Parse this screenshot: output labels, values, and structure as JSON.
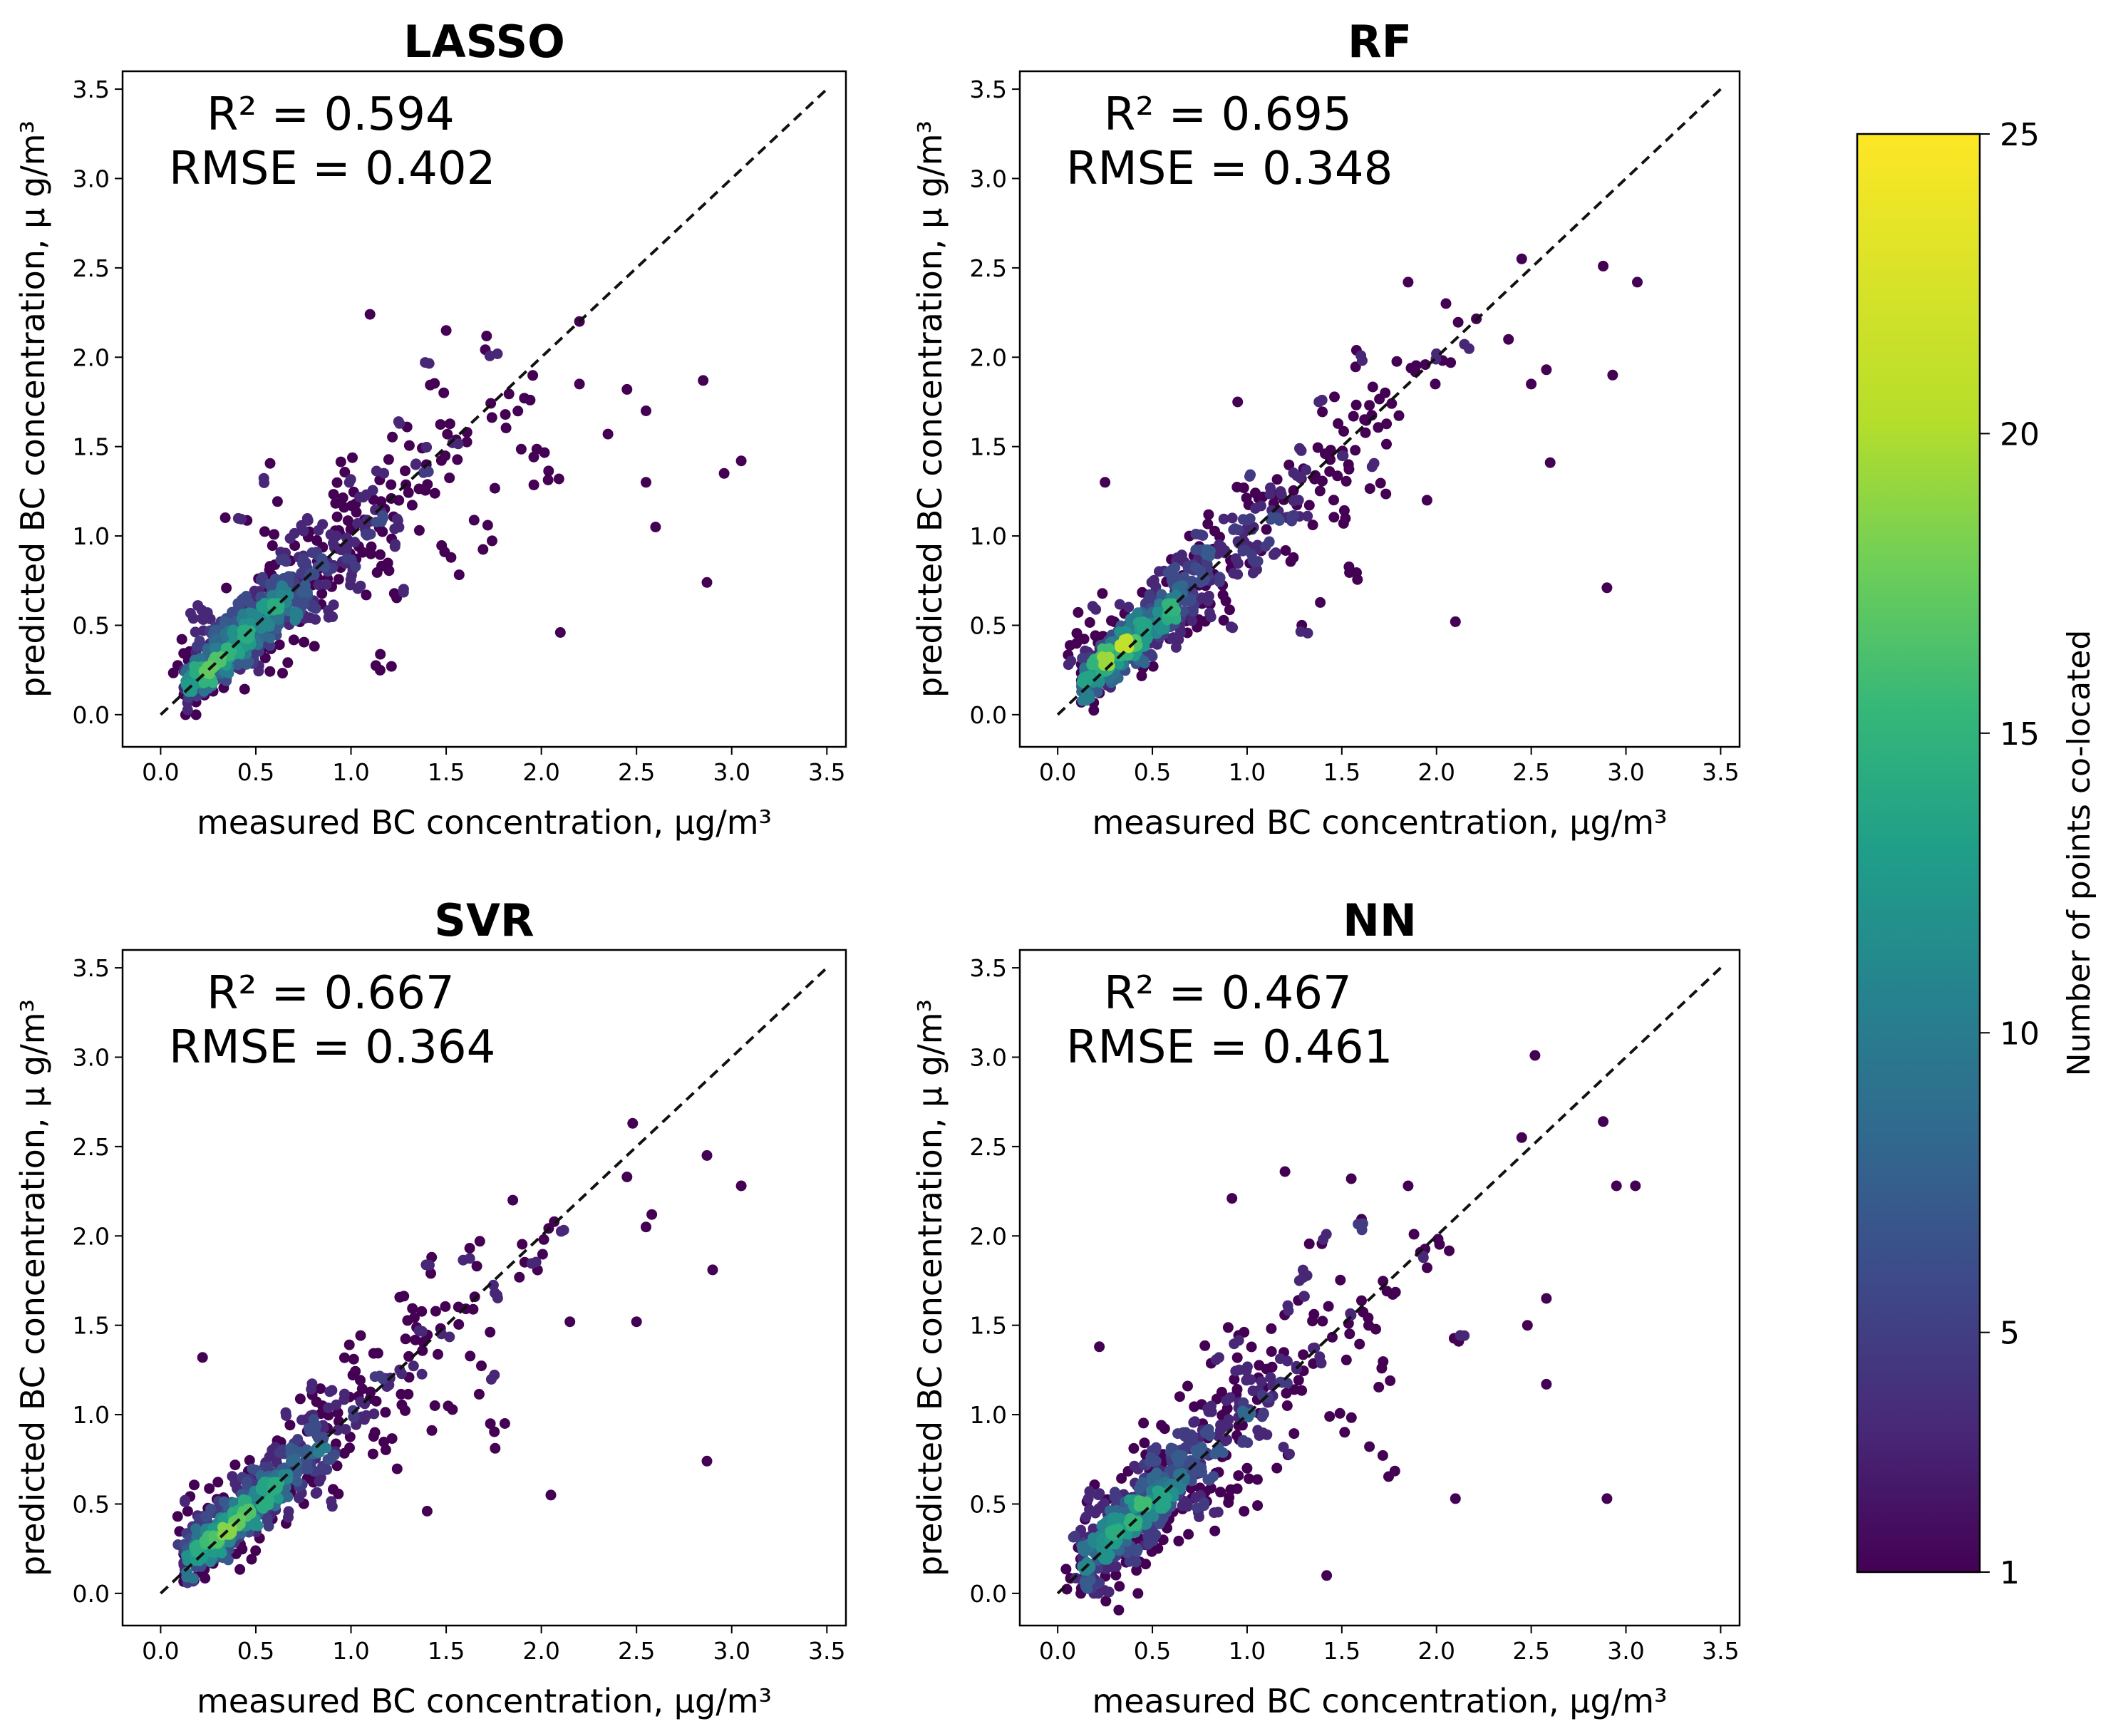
{
  "chart_data": [
    {
      "type": "scatter",
      "title": "LASSO",
      "xlabel": "measured BC concentration, μg/m³",
      "ylabel": "predicted BC concentration, μ g/m³",
      "xlim": [
        -0.2,
        3.6
      ],
      "ylim": [
        -0.18,
        3.6
      ],
      "xticks": [
        "0.0",
        "0.5",
        "1.0",
        "1.5",
        "2.0",
        "2.5",
        "3.0",
        "3.5"
      ],
      "yticks": [
        "0.0",
        "0.5",
        "1.0",
        "1.5",
        "2.0",
        "2.5",
        "3.0",
        "3.5"
      ],
      "annotation": {
        "r2": "R² = 0.594",
        "rmse": "RMSE = 0.402"
      },
      "stats": {
        "r2": 0.594,
        "rmse": 0.402
      },
      "reference_line": "y = x (dashed)",
      "outliers": [
        [
          2.1,
          0.46
        ],
        [
          2.87,
          0.74
        ],
        [
          3.05,
          1.42
        ],
        [
          2.96,
          1.35
        ],
        [
          2.6,
          1.05
        ],
        [
          2.55,
          1.3
        ],
        [
          2.85,
          1.87
        ],
        [
          2.55,
          1.7
        ],
        [
          2.35,
          1.57
        ],
        [
          2.45,
          1.82
        ],
        [
          2.2,
          1.85
        ],
        [
          1.1,
          2.24
        ],
        [
          1.5,
          2.15
        ],
        [
          2.2,
          2.2
        ]
      ],
      "points": [
        [
          0.42,
          0.4
        ],
        [
          0.38,
          0.36
        ],
        [
          0.5,
          0.45
        ],
        [
          0.3,
          0.34
        ],
        [
          0.6,
          0.55
        ],
        [
          0.7,
          0.62
        ],
        [
          0.8,
          0.75
        ],
        [
          0.95,
          0.9
        ],
        [
          1.1,
          1.05
        ],
        [
          1.2,
          1.15
        ],
        [
          1.3,
          1.25
        ],
        [
          1.4,
          1.3
        ],
        [
          1.5,
          1.4
        ],
        [
          1.6,
          1.55
        ],
        [
          1.8,
          1.7
        ],
        [
          1.9,
          1.8
        ],
        [
          0.9,
          1.2
        ],
        [
          1.0,
          1.4
        ],
        [
          1.3,
          1.6
        ],
        [
          1.4,
          1.9
        ],
        [
          1.7,
          2.0
        ],
        [
          1.25,
          0.7
        ],
        [
          1.5,
          0.9
        ],
        [
          1.7,
          1.0
        ],
        [
          0.6,
          0.9
        ],
        [
          0.7,
          1.1
        ],
        [
          0.85,
          0.6
        ],
        [
          1.0,
          0.7
        ],
        [
          1.15,
          0.3
        ],
        [
          0.4,
          1.1
        ],
        [
          0.55,
          1.3
        ],
        [
          1.95,
          1.5
        ],
        [
          2.05,
          1.3
        ],
        [
          0.2,
          0.6
        ],
        [
          0.1,
          0.3
        ],
        [
          0.15,
          0.5
        ],
        [
          0.25,
          0.25
        ],
        [
          0.45,
          0.28
        ],
        [
          0.6,
          0.3
        ]
      ]
    },
    {
      "type": "scatter",
      "title": "RF",
      "xlabel": "measured BC concentration, μg/m³",
      "ylabel": "predicted BC concentration, μ g/m³",
      "xlim": [
        -0.2,
        3.6
      ],
      "ylim": [
        -0.18,
        3.6
      ],
      "xticks": [
        "0.0",
        "0.5",
        "1.0",
        "1.5",
        "2.0",
        "2.5",
        "3.0",
        "3.5"
      ],
      "yticks": [
        "0.0",
        "0.5",
        "1.0",
        "1.5",
        "2.0",
        "2.5",
        "3.0",
        "3.5"
      ],
      "annotation": {
        "r2": "R² = 0.695",
        "rmse": "RMSE = 0.348"
      },
      "stats": {
        "r2": 0.695,
        "rmse": 0.348
      },
      "reference_line": "y = x (dashed)",
      "outliers": [
        [
          2.9,
          0.71
        ],
        [
          2.1,
          0.52
        ],
        [
          2.93,
          1.9
        ],
        [
          3.06,
          2.42
        ],
        [
          2.88,
          2.51
        ],
        [
          2.6,
          1.41
        ],
        [
          2.58,
          1.93
        ],
        [
          2.5,
          1.85
        ],
        [
          2.45,
          2.55
        ],
        [
          2.38,
          2.1
        ],
        [
          1.85,
          2.42
        ],
        [
          2.05,
          2.3
        ],
        [
          0.25,
          1.3
        ],
        [
          0.95,
          1.75
        ],
        [
          1.95,
          1.2
        ]
      ],
      "points": [
        [
          0.4,
          0.4
        ],
        [
          0.35,
          0.37
        ],
        [
          0.5,
          0.45
        ],
        [
          0.3,
          0.33
        ],
        [
          0.6,
          0.55
        ],
        [
          0.7,
          0.65
        ],
        [
          0.85,
          0.8
        ],
        [
          1.0,
          0.95
        ],
        [
          1.1,
          1.1
        ],
        [
          1.2,
          1.2
        ],
        [
          1.35,
          1.3
        ],
        [
          1.5,
          1.45
        ],
        [
          1.6,
          1.6
        ],
        [
          1.75,
          1.7
        ],
        [
          1.9,
          1.9
        ],
        [
          2.0,
          2.0
        ],
        [
          2.15,
          2.15
        ],
        [
          0.8,
          1.0
        ],
        [
          1.0,
          1.3
        ],
        [
          1.3,
          1.5
        ],
        [
          1.5,
          1.1
        ],
        [
          1.7,
          1.3
        ],
        [
          0.9,
          0.6
        ],
        [
          1.2,
          0.9
        ],
        [
          0.6,
          0.8
        ],
        [
          1.4,
          1.8
        ],
        [
          1.6,
          2.0
        ],
        [
          0.2,
          0.6
        ],
        [
          0.1,
          0.3
        ],
        [
          0.15,
          0.45
        ],
        [
          0.25,
          0.25
        ],
        [
          0.45,
          0.28
        ],
        [
          1.35,
          0.5
        ],
        [
          1.55,
          0.8
        ]
      ]
    },
    {
      "type": "scatter",
      "title": "SVR",
      "xlabel": "measured BC concentration, μg/m³",
      "ylabel": "predicted BC concentration, μ g/m³",
      "xlim": [
        -0.2,
        3.6
      ],
      "ylim": [
        -0.18,
        3.6
      ],
      "xticks": [
        "0.0",
        "0.5",
        "1.0",
        "1.5",
        "2.0",
        "2.5",
        "3.0",
        "3.5"
      ],
      "yticks": [
        "0.0",
        "0.5",
        "1.0",
        "1.5",
        "2.0",
        "2.5",
        "3.0",
        "3.5"
      ],
      "annotation": {
        "r2": "R² = 0.667",
        "rmse": "RMSE = 0.364"
      },
      "stats": {
        "r2": 0.667,
        "rmse": 0.364
      },
      "reference_line": "y = x (dashed)",
      "outliers": [
        [
          2.05,
          0.55
        ],
        [
          2.87,
          0.74
        ],
        [
          2.9,
          1.81
        ],
        [
          3.05,
          2.28
        ],
        [
          2.87,
          2.45
        ],
        [
          2.58,
          2.12
        ],
        [
          2.55,
          2.05
        ],
        [
          2.5,
          1.52
        ],
        [
          2.48,
          2.63
        ],
        [
          2.45,
          2.33
        ],
        [
          2.15,
          1.52
        ],
        [
          0.22,
          1.32
        ],
        [
          1.4,
          0.46
        ],
        [
          1.85,
          2.2
        ]
      ],
      "points": [
        [
          0.4,
          0.4
        ],
        [
          0.35,
          0.37
        ],
        [
          0.5,
          0.46
        ],
        [
          0.3,
          0.33
        ],
        [
          0.6,
          0.56
        ],
        [
          0.7,
          0.65
        ],
        [
          0.85,
          0.8
        ],
        [
          1.0,
          0.95
        ],
        [
          1.1,
          1.08
        ],
        [
          1.2,
          1.2
        ],
        [
          1.35,
          1.3
        ],
        [
          1.5,
          1.45
        ],
        [
          1.6,
          1.55
        ],
        [
          1.75,
          1.7
        ],
        [
          1.9,
          1.85
        ],
        [
          2.0,
          1.95
        ],
        [
          0.8,
          1.1
        ],
        [
          1.0,
          1.35
        ],
        [
          1.3,
          1.6
        ],
        [
          1.5,
          1.0
        ],
        [
          1.7,
          1.2
        ],
        [
          0.9,
          0.55
        ],
        [
          1.2,
          0.8
        ],
        [
          0.6,
          0.85
        ],
        [
          1.4,
          1.85
        ],
        [
          1.6,
          1.9
        ],
        [
          0.2,
          0.55
        ],
        [
          0.1,
          0.3
        ],
        [
          0.15,
          0.45
        ],
        [
          0.25,
          0.25
        ],
        [
          0.45,
          0.28
        ],
        [
          1.75,
          0.9
        ],
        [
          2.1,
          2.05
        ]
      ]
    },
    {
      "type": "scatter",
      "title": "NN",
      "xlabel": "measured BC concentration, μg/m³",
      "ylabel": "predicted BC concentration, μ g/m³",
      "xlim": [
        -0.2,
        3.6
      ],
      "ylim": [
        -0.18,
        3.6
      ],
      "xticks": [
        "0.0",
        "0.5",
        "1.0",
        "1.5",
        "2.0",
        "2.5",
        "3.0",
        "3.5"
      ],
      "yticks": [
        "0.0",
        "0.5",
        "1.0",
        "1.5",
        "2.0",
        "2.5",
        "3.0",
        "3.5"
      ],
      "annotation": {
        "r2": "R² = 0.467",
        "rmse": "RMSE = 0.461"
      },
      "stats": {
        "r2": 0.467,
        "rmse": 0.461
      },
      "reference_line": "y = x (dashed)",
      "outliers": [
        [
          2.9,
          0.53
        ],
        [
          2.1,
          0.53
        ],
        [
          1.42,
          0.1
        ],
        [
          2.52,
          3.01
        ],
        [
          2.88,
          2.64
        ],
        [
          2.95,
          2.28
        ],
        [
          3.05,
          2.28
        ],
        [
          2.58,
          1.17
        ],
        [
          2.58,
          1.65
        ],
        [
          2.45,
          2.55
        ],
        [
          2.48,
          1.5
        ],
        [
          0.22,
          1.38
        ],
        [
          1.2,
          2.36
        ],
        [
          0.92,
          2.21
        ],
        [
          1.55,
          2.32
        ],
        [
          1.85,
          2.28
        ],
        [
          1.0,
          0.7
        ]
      ],
      "points": [
        [
          0.4,
          0.4
        ],
        [
          0.35,
          0.37
        ],
        [
          0.5,
          0.46
        ],
        [
          0.3,
          0.3
        ],
        [
          0.6,
          0.56
        ],
        [
          0.7,
          0.65
        ],
        [
          0.85,
          0.8
        ],
        [
          1.0,
          0.95
        ],
        [
          1.1,
          1.1
        ],
        [
          1.2,
          1.2
        ],
        [
          1.35,
          1.3
        ],
        [
          1.5,
          1.45
        ],
        [
          1.6,
          1.55
        ],
        [
          1.75,
          1.7
        ],
        [
          1.9,
          1.85
        ],
        [
          2.0,
          1.95
        ],
        [
          0.8,
          1.3
        ],
        [
          1.0,
          1.5
        ],
        [
          1.3,
          1.8
        ],
        [
          1.5,
          1.0
        ],
        [
          1.7,
          1.2
        ],
        [
          0.9,
          0.5
        ],
        [
          1.2,
          0.8
        ],
        [
          0.6,
          0.95
        ],
        [
          1.4,
          1.95
        ],
        [
          1.6,
          2.05
        ],
        [
          0.2,
          0.55
        ],
        [
          0.1,
          0.3
        ],
        [
          0.05,
          0.1
        ],
        [
          0.15,
          0.05
        ],
        [
          0.3,
          0.02
        ],
        [
          0.45,
          0.15
        ],
        [
          1.75,
          0.75
        ],
        [
          2.15,
          1.4
        ],
        [
          1.25,
          1.6
        ]
      ]
    }
  ],
  "colorbar": {
    "label": "Number of points co-located",
    "colormap": "viridis",
    "range": [
      1,
      25
    ],
    "ticks": [
      "1",
      "5",
      "10",
      "15",
      "20",
      "25"
    ],
    "tick_values": [
      1,
      5,
      10,
      15,
      20,
      25
    ]
  }
}
